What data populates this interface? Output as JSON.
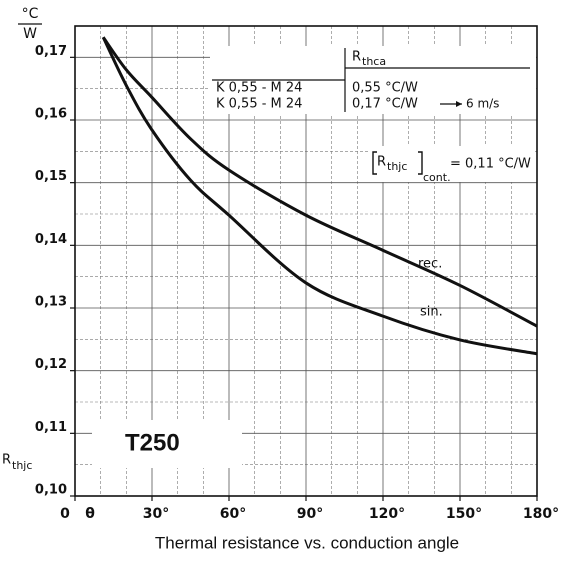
{
  "chart_data": {
    "type": "line",
    "title": "Thermal resistance vs. conduction angle",
    "y_unit": {
      "top": "°C",
      "bottom": "W"
    },
    "y_label": {
      "main": "R",
      "sub": "thjc"
    },
    "x_label": "θ",
    "x": [
      11,
      20,
      30,
      45,
      60,
      90,
      120,
      150,
      180
    ],
    "series": [
      {
        "name": "rec.",
        "color": "#111111",
        "values": [
          0.1732,
          0.168,
          0.1636,
          0.157,
          0.152,
          0.1448,
          0.1392,
          0.1336,
          0.1271
        ]
      },
      {
        "name": "sin.",
        "color": "#111111",
        "values": [
          0.1732,
          0.1655,
          0.1584,
          0.1504,
          0.1448,
          0.134,
          0.1287,
          0.1249,
          0.1227
        ]
      }
    ],
    "xlim": [
      0,
      180
    ],
    "ylim": [
      0.1,
      0.175
    ],
    "xticks": [
      {
        "value": 0,
        "label": "0"
      },
      {
        "value": 30,
        "label": "30°"
      },
      {
        "value": 60,
        "label": "60°"
      },
      {
        "value": 90,
        "label": "90°"
      },
      {
        "value": 120,
        "label": "120°"
      },
      {
        "value": 150,
        "label": "150°"
      },
      {
        "value": 180,
        "label": "180°"
      }
    ],
    "yticks": [
      {
        "value": 0.1,
        "label": "0,10"
      },
      {
        "value": 0.11,
        "label": "0,11"
      },
      {
        "value": 0.12,
        "label": "0,12"
      },
      {
        "value": 0.13,
        "label": "0,13"
      },
      {
        "value": 0.14,
        "label": "0,14"
      },
      {
        "value": 0.15,
        "label": "0,15"
      },
      {
        "value": 0.16,
        "label": "0,16"
      },
      {
        "value": 0.17,
        "label": "0,17"
      }
    ],
    "x_minor_grid": [
      10,
      20,
      40,
      50,
      70,
      80,
      100,
      110,
      130,
      140,
      160,
      170
    ],
    "y_minor_grid": [
      0.105,
      0.115,
      0.125,
      0.135,
      0.145,
      0.155,
      0.165
    ],
    "grid": true,
    "device": "T250",
    "legend_table": {
      "header": {
        "main": "R",
        "sub": "thca"
      },
      "rows": [
        [
          "K 0,55 - M 24",
          "0,55 °C/W",
          ""
        ],
        [
          "K 0,55 - M 24",
          "0,17 °C/W",
          "6 m/s"
        ]
      ]
    },
    "rthjc_note": {
      "main": "R",
      "sub": "thjc",
      "sub2": "cont.",
      "value": "= 0,11  °C/W"
    }
  }
}
